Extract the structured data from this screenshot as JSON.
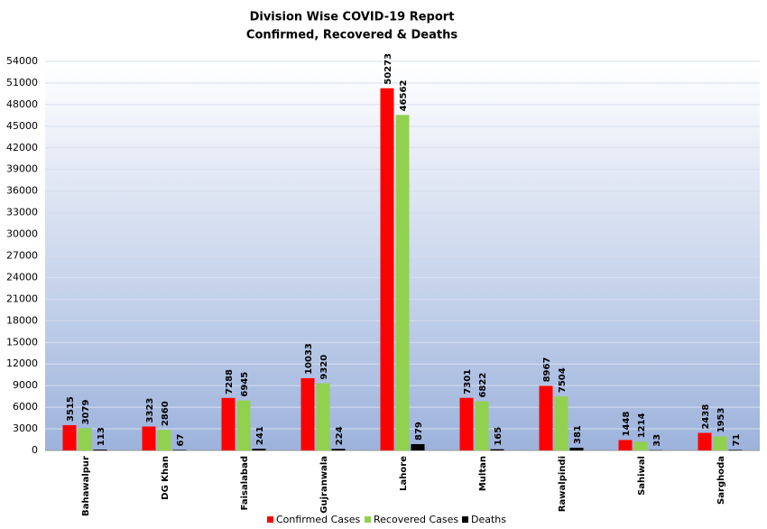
{
  "chart_data": {
    "type": "bar",
    "title": "Division Wise COVID-19  Report",
    "subtitle": "Confirmed, Recovered & Deaths",
    "categories": [
      "Bahawalpur",
      "DG Khan",
      "Faisalabad",
      "Gujranwala",
      "Lahore",
      "Multan",
      "Rawalpindi",
      "Sahiwal",
      "Sarghoda"
    ],
    "series": [
      {
        "name": "Confirmed Cases",
        "color": "#ff0000",
        "values": [
          3515,
          3323,
          7288,
          10033,
          50273,
          7301,
          8967,
          1448,
          2438
        ]
      },
      {
        "name": "Recovered Cases",
        "color": "#92d050",
        "values": [
          3079,
          2860,
          6945,
          9320,
          46562,
          6822,
          7504,
          1214,
          1953
        ]
      },
      {
        "name": "Deaths",
        "color": "#000000",
        "values": [
          113,
          67,
          241,
          224,
          879,
          165,
          381,
          33,
          71
        ]
      }
    ],
    "ylim": [
      0,
      54000
    ],
    "yticks": [
      0,
      3000,
      6000,
      9000,
      12000,
      15000,
      18000,
      21000,
      24000,
      27000,
      30000,
      33000,
      36000,
      39000,
      42000,
      45000,
      48000,
      51000,
      54000
    ],
    "grid": true,
    "legend": "bottom"
  }
}
